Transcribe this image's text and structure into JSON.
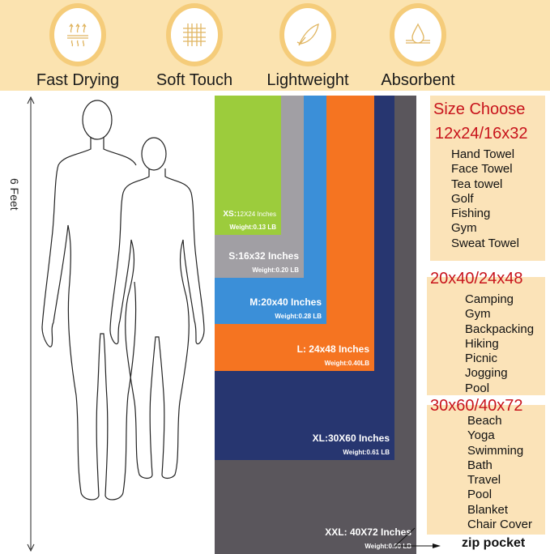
{
  "features": [
    {
      "label": "Fast Drying",
      "icon": "heat-waves-icon"
    },
    {
      "label": "Soft Touch",
      "icon": "fabric-grid-icon"
    },
    {
      "label": "Lightweight",
      "icon": "feather-icon"
    },
    {
      "label": "Absorbent",
      "icon": "water-drop-icon"
    }
  ],
  "height_label": "6 Feet",
  "towels": [
    {
      "size": "XS:",
      "dim": "12X24 Inches",
      "weight": "Weight:0.13 LB",
      "color": "#9ccc3c"
    },
    {
      "size": "S:16x32 Inches",
      "weight": "Weight:0.20 LB",
      "color": "#a19fa4"
    },
    {
      "size": "M:20x40 Inches",
      "weight": "Weight:0.28 LB",
      "color": "#3b8fd8"
    },
    {
      "size": "L: 24x48 Inches",
      "weight": "Weight:0.40LB",
      "color": "#f57421"
    },
    {
      "size": "XL:30X60 Inches",
      "weight": "Weight:0.61 LB",
      "color": "#273670"
    },
    {
      "size": "XXL: 40X72 Inches",
      "weight": "Weight:0.90 LB",
      "color": "#5a565c"
    }
  ],
  "zip_label": "zip pocket",
  "size_title": "Size Choose",
  "groups": [
    {
      "title": "12x24/16x32",
      "items": [
        "Hand Towel",
        "Face Towel",
        "Tea towel",
        "Golf",
        "Fishing",
        "Gym",
        "Sweat Towel"
      ]
    },
    {
      "title": "20x40/24x48",
      "items": [
        "Camping",
        "Gym",
        "Backpacking",
        "Hiking",
        "Picnic",
        "Jogging",
        "Pool"
      ]
    },
    {
      "title": "30x60/40x72",
      "items": [
        "Beach",
        "Yoga",
        "Swimming",
        "Bath",
        "Travel",
        "Pool",
        "Blanket",
        "Chair Cover"
      ]
    }
  ]
}
